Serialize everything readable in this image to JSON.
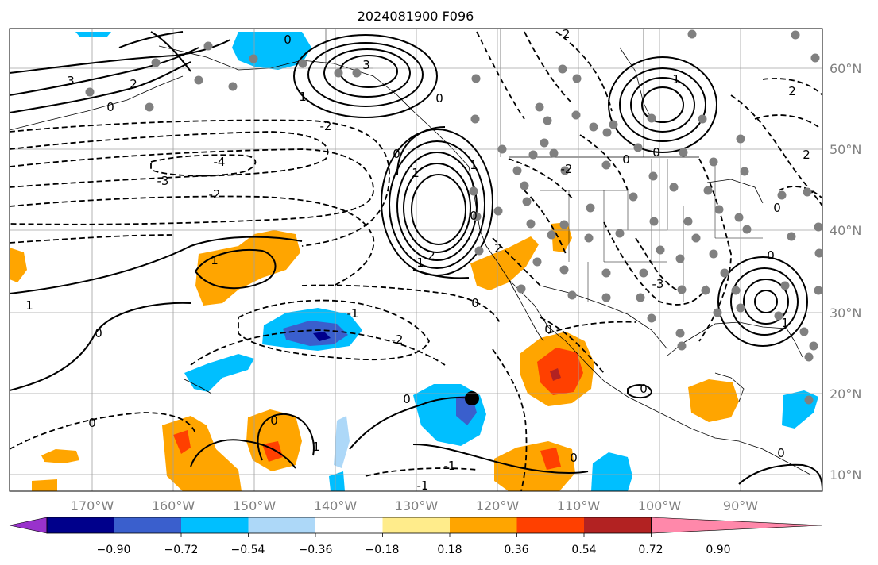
{
  "map": {
    "title": "2024081900 F096",
    "extent": {
      "lon": [
        -180,
        -80
      ],
      "lat": [
        8,
        65
      ]
    },
    "lon_ticks": [
      "170°W",
      "160°W",
      "150°W",
      "140°W",
      "130°W",
      "120°W",
      "110°W",
      "100°W",
      "90°W"
    ],
    "lat_ticks": [
      "60°N",
      "50°N",
      "40°N",
      "30°N",
      "20°N",
      "10°N"
    ],
    "grid": true,
    "contour_labels": [
      "3",
      "2",
      "1",
      "0",
      "-1",
      "-2",
      "-3",
      "-4"
    ],
    "colorbar": {
      "orientation": "horizontal",
      "extend": "both",
      "tick_labels": [
        "−0.90",
        "−0.72",
        "−0.54",
        "−0.36",
        "−0.18",
        "0.18",
        "0.36",
        "0.54",
        "0.72",
        "0.90"
      ],
      "colors": [
        "#9932cc",
        "#00008b",
        "#3a5fcd",
        "#00bfff",
        "#add8f8",
        "#ffffff",
        "#ffec8b",
        "#ffa500",
        "#ff4000",
        "#b22222",
        "#ff88aa"
      ]
    },
    "colors": {
      "positive_contour": "#000000",
      "negative_contour": "#000000",
      "station_dot": "#808080",
      "gridline": "#a0a0a0"
    }
  }
}
